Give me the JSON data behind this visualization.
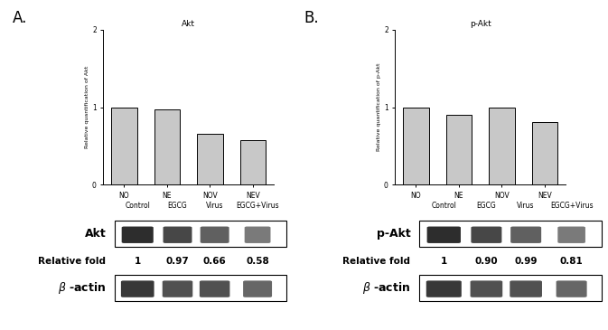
{
  "panel_A": {
    "title": "Akt",
    "categories": [
      "NO",
      "NE",
      "NOV",
      "NEV"
    ],
    "values": [
      1.0,
      0.97,
      0.66,
      0.58
    ],
    "ylabel": "Relative quantification of Akt",
    "ylim": [
      0,
      2
    ],
    "yticks": [
      0,
      1,
      2
    ],
    "bar_color": "#c8c8c8",
    "bar_edge_color": "#000000",
    "label": "A.",
    "wb_label": "Akt",
    "rel_fold_values": [
      "1",
      "0.97",
      "0.66",
      "0.58"
    ],
    "columns": [
      "Control",
      "EGCG",
      "Virus",
      "EGCG+Virus"
    ]
  },
  "panel_B": {
    "title": "p-Akt",
    "categories": [
      "NO",
      "NE",
      "NOV",
      "NEV"
    ],
    "values": [
      1.0,
      0.9,
      0.99,
      0.81
    ],
    "ylabel": "Relative quantification of p-Akt",
    "ylim": [
      0,
      2
    ],
    "yticks": [
      0,
      1,
      2
    ],
    "bar_color": "#c8c8c8",
    "bar_edge_color": "#000000",
    "label": "B.",
    "wb_label": "p-Akt",
    "rel_fold_values": [
      "1",
      "0.90",
      "0.99",
      "0.81"
    ],
    "columns": [
      "Control",
      "EGCG",
      "Virus",
      "EGCG+Virus"
    ]
  },
  "background_color": "#ffffff"
}
